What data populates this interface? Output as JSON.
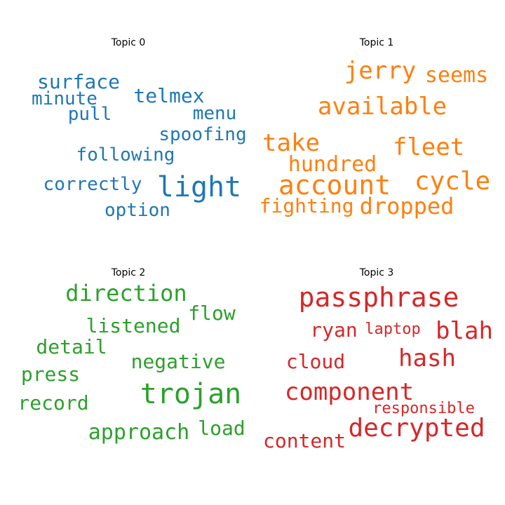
{
  "chart_data": {
    "type": "wordcloud",
    "panels": [
      {
        "title": "Topic 0",
        "color": "#1f77b4",
        "words": [
          "surface",
          "telmex",
          "minute",
          "menu",
          "pull",
          "spoofing",
          "following",
          "light",
          "correctly",
          "option"
        ]
      },
      {
        "title": "Topic 1",
        "color": "#ff7f0e",
        "words": [
          "jerry",
          "seems",
          "available",
          "take",
          "fleet",
          "hundred",
          "account",
          "cycle",
          "fighting",
          "dropped"
        ]
      },
      {
        "title": "Topic 2",
        "color": "#2ca02c",
        "words": [
          "direction",
          "flow",
          "listened",
          "detail",
          "negative",
          "press",
          "trojan",
          "record",
          "approach",
          "load"
        ]
      },
      {
        "title": "Topic 3",
        "color": "#d62728",
        "words": [
          "passphrase",
          "ryan",
          "laptop",
          "blah",
          "hash",
          "cloud",
          "component",
          "responsible",
          "decrypted",
          "content"
        ]
      }
    ]
  }
}
